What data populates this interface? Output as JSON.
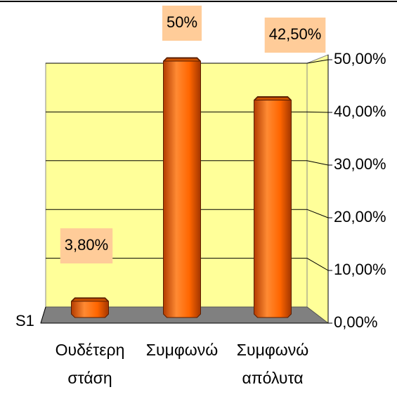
{
  "chart_data": {
    "type": "bar",
    "categories": [
      "Ουδέτερη στάση",
      "Συμφωνώ",
      "Συμφωνώ απόλυτα"
    ],
    "series": [
      {
        "name": "S1",
        "color": "#ff6600",
        "values": [
          3.8,
          50,
          42.5
        ],
        "value_labels": [
          "3,80%",
          "50%",
          "42,50%"
        ]
      }
    ],
    "ylim": [
      0,
      50
    ],
    "yticks": [
      {
        "value": 0,
        "label": "0,00%"
      },
      {
        "value": 10,
        "label": "10,00%"
      },
      {
        "value": 20,
        "label": "20,00%"
      },
      {
        "value": 30,
        "label": "30,00%"
      },
      {
        "value": 40,
        "label": "40,00%"
      },
      {
        "value": 50,
        "label": "50,00%"
      }
    ],
    "grid": true
  }
}
